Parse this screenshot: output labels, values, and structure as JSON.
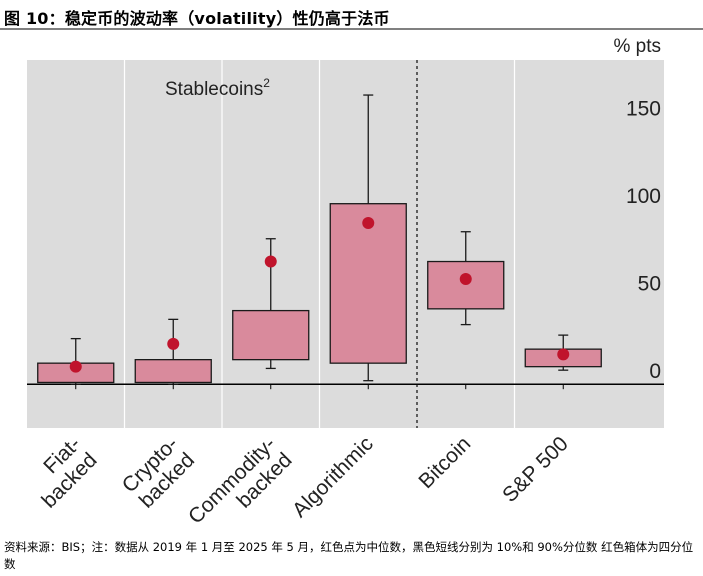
{
  "title": "图 10：稳定币的波动率（volatility）性仍高于法币",
  "source_note": "资料来源：BIS；注：数据从 2019 年 1 月至 2025 年 5 月，红色点为中位数，黑色短线分别为 10%和 90%分位数  红色箱体为四分位数",
  "colors": {
    "box_fill": "#D98A9C",
    "box_stroke": "#1a1a1a",
    "median_dot": "#C0142C",
    "panel_bg": "#DCDCDC",
    "grid": "#ffffff"
  },
  "chart_data": {
    "type": "box",
    "unit_label": "% pts",
    "group_label": "Stablecoins",
    "group_label_sup": "2",
    "ylim": [
      -25,
      185
    ],
    "yticks": [
      0,
      50,
      100,
      150
    ],
    "categories": [
      "Fiat-\nbacked",
      "Crypto-\nbacked",
      "Commodity-\nbacked",
      "Algorithmic",
      "Bitcoin",
      "S&P 500"
    ],
    "p10": [
      0,
      0,
      9,
      2,
      34,
      8
    ],
    "q1": [
      1,
      1,
      14,
      12,
      43,
      10
    ],
    "median": [
      10,
      23,
      70,
      92,
      60,
      17
    ],
    "q3": [
      12,
      14,
      42,
      103,
      70,
      20
    ],
    "p90": [
      26,
      37,
      83,
      165,
      87,
      28
    ],
    "divider_after_index": 3,
    "grid": true
  }
}
